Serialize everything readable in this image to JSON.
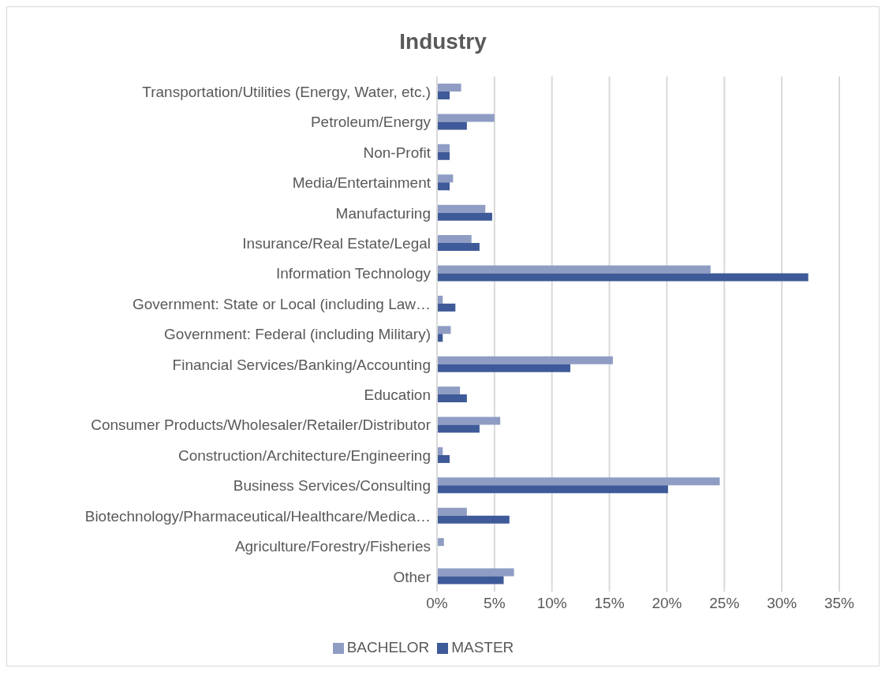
{
  "chart_data": {
    "type": "bar",
    "orientation": "horizontal",
    "title": "Industry",
    "categories": [
      "Transportation/Utilities (Energy, Water, etc.)",
      "Petroleum/Energy",
      "Non-Profit",
      "Media/Entertainment",
      "Manufacturing",
      "Insurance/Real Estate/Legal",
      "Information Technology",
      "Government: State or Local (including Law…",
      "Government: Federal (including Military)",
      "Financial Services/Banking/Accounting",
      "Education",
      "Consumer Products/Wholesaler/Retailer/Distributor",
      "Construction/Architecture/Engineering",
      "Business Services/Consulting",
      "Biotechnology/Pharmaceutical/Healthcare/Medica…",
      "Agriculture/Forestry/Fisheries",
      "Other"
    ],
    "series": [
      {
        "name": "BACHELOR",
        "color": "#8f9dc4",
        "values": [
          2.1,
          5.0,
          1.1,
          1.4,
          4.2,
          3.0,
          23.8,
          0.5,
          1.2,
          15.3,
          2.0,
          5.5,
          0.5,
          24.6,
          2.6,
          0.6,
          6.7
        ]
      },
      {
        "name": "MASTER",
        "color": "#3f5a98",
        "values": [
          1.1,
          2.6,
          1.1,
          1.1,
          4.8,
          3.7,
          32.3,
          1.6,
          0.5,
          11.6,
          2.6,
          3.7,
          1.1,
          20.1,
          6.3,
          0,
          5.8
        ]
      }
    ],
    "xlim": [
      0,
      35
    ],
    "xticks": [
      {
        "value": 0,
        "label": "0%"
      },
      {
        "value": 5,
        "label": "5%"
      },
      {
        "value": 10,
        "label": "10%"
      },
      {
        "value": 15,
        "label": "15%"
      },
      {
        "value": 20,
        "label": "20%"
      },
      {
        "value": 25,
        "label": "25%"
      },
      {
        "value": 30,
        "label": "30%"
      },
      {
        "value": 35,
        "label": "35%"
      }
    ],
    "grid": "x",
    "legend": "bottom"
  }
}
